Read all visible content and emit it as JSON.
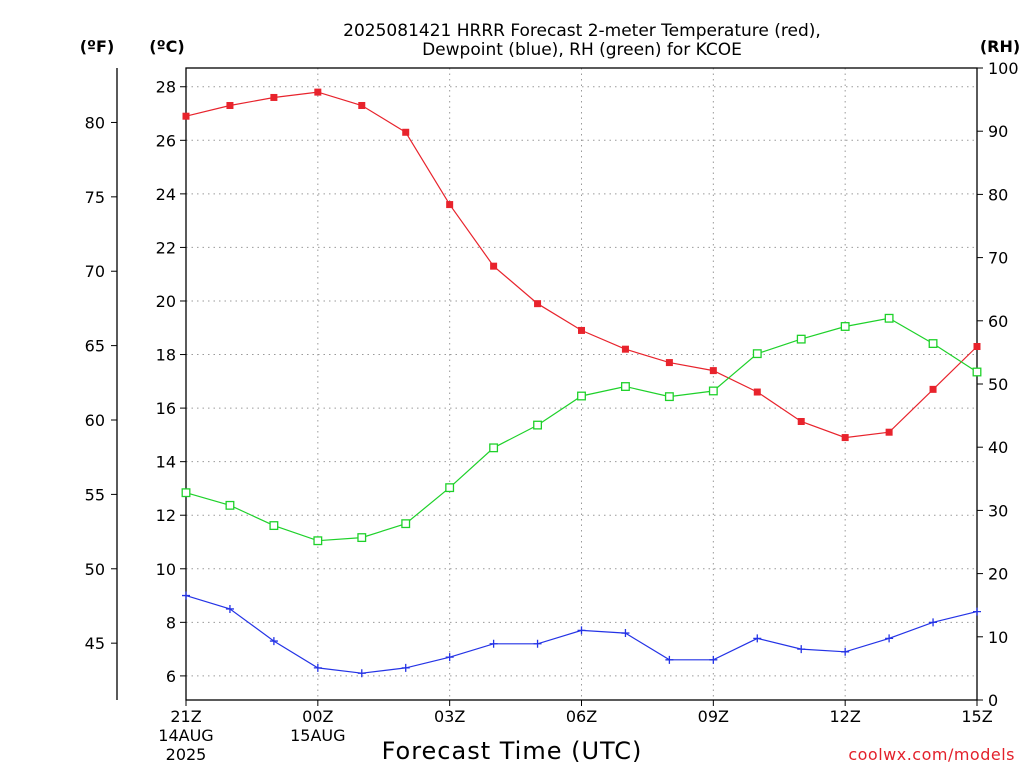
{
  "chart_data": {
    "type": "line",
    "title_line1": "2025081421 HRRR Forecast 2-meter Temperature (red),",
    "title_line2": "Dewpoint (blue), RH (green) for KCOE",
    "xlabel": "Forecast Time (UTC)",
    "credit": "coolwx.com/models",
    "unit_f": "(ºF)",
    "unit_c": "(ºC)",
    "unit_rh": "(RH)",
    "x_hours": [
      0,
      1,
      2,
      3,
      4,
      5,
      6,
      7,
      8,
      9,
      10,
      11,
      12,
      13,
      14,
      15,
      16,
      17,
      18
    ],
    "x_ticks": [
      {
        "hour": 0,
        "lines": [
          "21Z",
          "14AUG",
          "2025"
        ]
      },
      {
        "hour": 3,
        "lines": [
          "00Z",
          "15AUG"
        ]
      },
      {
        "hour": 6,
        "lines": [
          "03Z"
        ]
      },
      {
        "hour": 9,
        "lines": [
          "06Z"
        ]
      },
      {
        "hour": 12,
        "lines": [
          "09Z"
        ]
      },
      {
        "hour": 15,
        "lines": [
          "12Z"
        ]
      },
      {
        "hour": 18,
        "lines": [
          "15Z"
        ]
      }
    ],
    "ylim_c": [
      5.1,
      28.7
    ],
    "ylim_rh": [
      0,
      100
    ],
    "c_ticks": [
      6,
      8,
      10,
      12,
      14,
      16,
      18,
      20,
      22,
      24,
      26,
      28
    ],
    "f_ticks": [
      45,
      50,
      55,
      60,
      65,
      70,
      75,
      80
    ],
    "rh_ticks": [
      0,
      10,
      20,
      30,
      40,
      50,
      60,
      70,
      80,
      90,
      100
    ],
    "series": [
      {
        "name": "Temperature",
        "color": "#e8232c",
        "marker": "filled-square",
        "axis": "c",
        "values": [
          26.9,
          27.3,
          27.6,
          27.8,
          27.3,
          26.3,
          23.6,
          21.3,
          19.9,
          18.9,
          18.2,
          17.7,
          17.4,
          16.6,
          15.5,
          14.9,
          15.1,
          16.7,
          18.3
        ]
      },
      {
        "name": "Dewpoint",
        "color": "#2433e6",
        "marker": "plus",
        "axis": "c",
        "values": [
          9.0,
          8.5,
          7.3,
          6.3,
          6.1,
          6.3,
          6.7,
          7.2,
          7.2,
          7.7,
          7.6,
          6.6,
          6.6,
          7.4,
          7.0,
          6.9,
          7.4,
          8.0,
          8.4
        ]
      },
      {
        "name": "RH",
        "color": "#1ed12a",
        "marker": "open-square",
        "axis": "rh",
        "values": [
          32.8,
          30.8,
          27.6,
          25.2,
          25.7,
          27.9,
          33.6,
          39.9,
          43.5,
          48.1,
          49.6,
          48.0,
          48.9,
          54.8,
          57.1,
          59.1,
          60.4,
          56.4,
          51.9
        ]
      }
    ]
  }
}
